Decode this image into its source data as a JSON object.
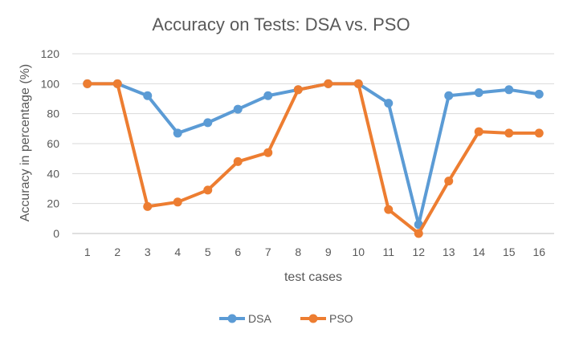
{
  "chart_data": {
    "type": "line",
    "title": "Accuracy on Tests: DSA vs. PSO",
    "xlabel": "test cases",
    "ylabel": "Accuracy in percentage (%)",
    "categories": [
      "1",
      "2",
      "3",
      "4",
      "5",
      "6",
      "7",
      "8",
      "9",
      "10",
      "11",
      "12",
      "13",
      "14",
      "15",
      "16"
    ],
    "ylim": [
      0,
      120
    ],
    "yticks": [
      0,
      20,
      40,
      60,
      80,
      100,
      120
    ],
    "grid": true,
    "legend_position": "bottom",
    "series": [
      {
        "name": "DSA",
        "color": "#5b9bd5",
        "values": [
          100,
          100,
          92,
          67,
          74,
          83,
          92,
          96,
          100,
          100,
          87,
          6,
          92,
          94,
          96,
          93
        ]
      },
      {
        "name": "PSO",
        "color": "#ed7d31",
        "values": [
          100,
          100,
          18,
          21,
          29,
          48,
          54,
          96,
          100,
          100,
          16,
          0,
          35,
          68,
          67,
          67
        ]
      }
    ]
  }
}
